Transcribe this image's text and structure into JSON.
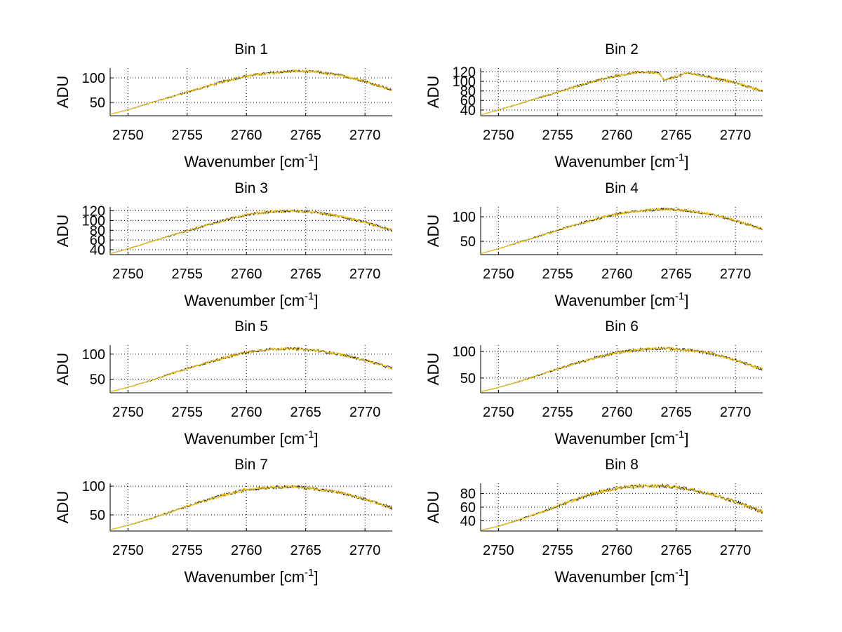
{
  "figure": {
    "xlabel_prefix": "Wavenumber [cm",
    "xlabel_sup": "-1",
    "xlabel_suffix": "]",
    "ylabel": "ADU",
    "series_colors": {
      "base": "#1a1a33",
      "overlay": "#f2c200"
    }
  },
  "chart_data": [
    {
      "type": "line",
      "title": "Bin 1",
      "xlabel": "Wavenumber [cm-1]",
      "ylabel": "ADU",
      "xlim": [
        2748.5,
        2772.3
      ],
      "ylim": [
        23,
        120
      ],
      "xticks": [
        2750,
        2755,
        2760,
        2765,
        2770
      ],
      "yticks": [
        50,
        100
      ],
      "x": [
        2748.5,
        2750,
        2752,
        2754,
        2756,
        2758,
        2760,
        2762,
        2764,
        2766,
        2768,
        2770,
        2772.3
      ],
      "y": [
        26,
        35,
        50,
        64,
        78,
        92,
        104,
        110,
        114,
        112,
        105,
        93,
        75
      ]
    },
    {
      "type": "line",
      "title": "Bin 2",
      "xlabel": "Wavenumber [cm-1]",
      "ylabel": "ADU",
      "xlim": [
        2748.5,
        2772.3
      ],
      "ylim": [
        28,
        128
      ],
      "xticks": [
        2750,
        2755,
        2760,
        2765,
        2770
      ],
      "yticks": [
        40,
        60,
        80,
        100,
        120
      ],
      "x": [
        2748.5,
        2750,
        2752,
        2754,
        2756,
        2758,
        2760,
        2762,
        2763.5,
        2764,
        2766,
        2768,
        2770,
        2772.3
      ],
      "y": [
        30,
        40,
        55,
        70,
        85,
        100,
        112,
        120,
        118,
        102,
        118,
        108,
        97,
        80
      ]
    },
    {
      "type": "line",
      "title": "Bin 3",
      "xlabel": "Wavenumber [cm-1]",
      "ylabel": "ADU",
      "xlim": [
        2748.5,
        2772.3
      ],
      "ylim": [
        30,
        128
      ],
      "xticks": [
        2750,
        2755,
        2760,
        2765,
        2770
      ],
      "yticks": [
        40,
        60,
        80,
        100,
        120
      ],
      "x": [
        2748.5,
        2750,
        2752,
        2754,
        2756,
        2758,
        2760,
        2762,
        2764,
        2766,
        2768,
        2770,
        2772.3
      ],
      "y": [
        32,
        42,
        57,
        72,
        86,
        100,
        112,
        118,
        120,
        116,
        108,
        96,
        80
      ]
    },
    {
      "type": "line",
      "title": "Bin 4",
      "xlabel": "Wavenumber [cm-1]",
      "ylabel": "ADU",
      "xlim": [
        2748.5,
        2772.3
      ],
      "ylim": [
        23,
        120
      ],
      "xticks": [
        2750,
        2755,
        2760,
        2765,
        2770
      ],
      "yticks": [
        50,
        100
      ],
      "x": [
        2748.5,
        2750,
        2752,
        2754,
        2756,
        2758,
        2760,
        2762,
        2764,
        2766,
        2768,
        2770,
        2772.3
      ],
      "y": [
        25,
        35,
        50,
        65,
        80,
        94,
        106,
        112,
        116,
        112,
        105,
        92,
        75
      ]
    },
    {
      "type": "line",
      "title": "Bin 5",
      "xlabel": "Wavenumber [cm-1]",
      "ylabel": "ADU",
      "xlim": [
        2748.5,
        2772.3
      ],
      "ylim": [
        23,
        118
      ],
      "xticks": [
        2750,
        2755,
        2760,
        2765,
        2770
      ],
      "yticks": [
        50,
        100
      ],
      "x": [
        2748.5,
        2750,
        2752,
        2754,
        2756,
        2758,
        2760,
        2762,
        2764,
        2766,
        2768,
        2770,
        2772.3
      ],
      "y": [
        25,
        34,
        48,
        64,
        78,
        92,
        104,
        110,
        111,
        107,
        99,
        88,
        72
      ]
    },
    {
      "type": "line",
      "title": "Bin 6",
      "xlabel": "Wavenumber [cm-1]",
      "ylabel": "ADU",
      "xlim": [
        2748.5,
        2772.3
      ],
      "ylim": [
        22,
        112
      ],
      "xticks": [
        2750,
        2755,
        2760,
        2765,
        2770
      ],
      "yticks": [
        50,
        100
      ],
      "x": [
        2748.5,
        2750,
        2752,
        2754,
        2756,
        2758,
        2760,
        2762,
        2764,
        2766,
        2768,
        2770,
        2772.3
      ],
      "y": [
        24,
        32,
        45,
        60,
        74,
        87,
        98,
        104,
        106,
        103,
        96,
        84,
        66
      ]
    },
    {
      "type": "line",
      "title": "Bin 7",
      "xlabel": "Wavenumber [cm-1]",
      "ylabel": "ADU",
      "xlim": [
        2748.5,
        2772.3
      ],
      "ylim": [
        22,
        105
      ],
      "xticks": [
        2750,
        2755,
        2760,
        2765,
        2770
      ],
      "yticks": [
        50,
        100
      ],
      "x": [
        2748.5,
        2750,
        2752,
        2754,
        2756,
        2758,
        2760,
        2762,
        2764,
        2766,
        2768,
        2770,
        2772.3
      ],
      "y": [
        24,
        32,
        44,
        58,
        72,
        84,
        94,
        98,
        99,
        95,
        88,
        77,
        62
      ]
    },
    {
      "type": "line",
      "title": "Bin 8",
      "xlabel": "Wavenumber [cm-1]",
      "ylabel": "ADU",
      "xlim": [
        2748.5,
        2772.3
      ],
      "ylim": [
        25,
        95
      ],
      "xticks": [
        2750,
        2755,
        2760,
        2765,
        2770
      ],
      "yticks": [
        40,
        60,
        80
      ],
      "x": [
        2748.5,
        2750,
        2752,
        2754,
        2756,
        2758,
        2760,
        2762,
        2764,
        2766,
        2768,
        2770,
        2772.3
      ],
      "y": [
        26,
        32,
        43,
        55,
        68,
        80,
        88,
        91,
        91,
        87,
        79,
        68,
        53
      ]
    }
  ]
}
